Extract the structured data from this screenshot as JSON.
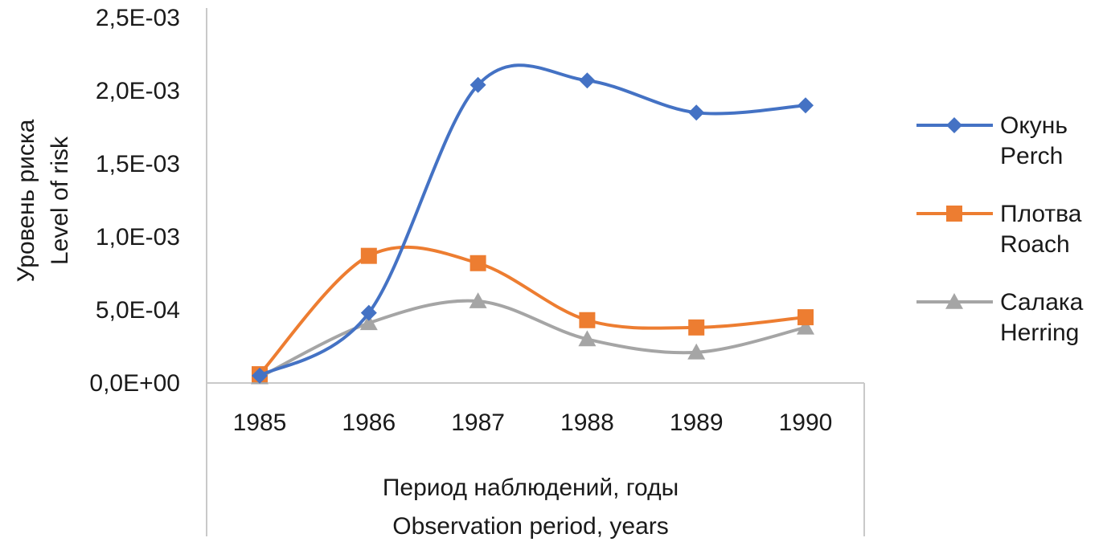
{
  "chart_data": {
    "type": "line",
    "title": "",
    "categories": [
      "1985",
      "1986",
      "1987",
      "1988",
      "1989",
      "1990"
    ],
    "ylabel_lines": [
      "Уровень риска",
      "Level of risk"
    ],
    "xlabel_lines": [
      "Период наблюдений, годы",
      "Observation period, years"
    ],
    "ylim": [
      0,
      0.0025
    ],
    "yticks": [
      {
        "value": 0.0,
        "label": "0,0E+00"
      },
      {
        "value": 0.0005,
        "label": "5,0E-04"
      },
      {
        "value": 0.001,
        "label": "1,0E-03"
      },
      {
        "value": 0.0015,
        "label": "1,5E-03"
      },
      {
        "value": 0.002,
        "label": "2,0E-03"
      },
      {
        "value": 0.0025,
        "label": "2,5E-03"
      }
    ],
    "grid": false,
    "smooth": true,
    "legend_position": "right",
    "series": [
      {
        "name_lines": [
          "Окунь",
          "Perch"
        ],
        "marker": "diamond",
        "color": "#4472C4",
        "values": [
          5e-05,
          0.00048,
          0.00204,
          0.00207,
          0.00185,
          0.0019
        ]
      },
      {
        "name_lines": [
          "Плотва",
          "Roach"
        ],
        "marker": "square",
        "color": "#ED7D31",
        "values": [
          6e-05,
          0.00087,
          0.00082,
          0.00043,
          0.00038,
          0.00045
        ]
      },
      {
        "name_lines": [
          "Салака",
          "Herring"
        ],
        "marker": "triangle",
        "color": "#A5A5A5",
        "values": [
          4e-05,
          0.00041,
          0.00056,
          0.0003,
          0.00021,
          0.00038
        ]
      }
    ]
  }
}
